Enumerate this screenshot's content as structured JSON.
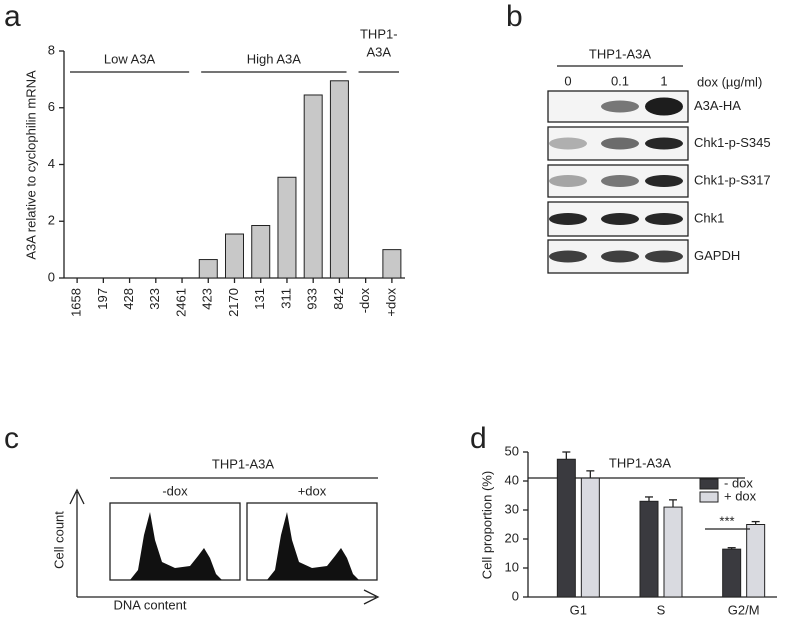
{
  "chart_data": [
    {
      "type": "bar",
      "panel": "a",
      "y_label": "A3A relative to cyclophilin mRNA",
      "categories": [
        "1658",
        "197",
        "428",
        "323",
        "2461",
        "423",
        "2170",
        "131",
        "311",
        "933",
        "842",
        "-dox",
        "+dox"
      ],
      "values": [
        0,
        0,
        0,
        0,
        0,
        0.65,
        1.55,
        1.85,
        3.55,
        6.45,
        6.95,
        0,
        1.0
      ],
      "color": "#c8c8c8",
      "ylim": [
        0,
        8
      ],
      "yticks": [
        0,
        2,
        4,
        6,
        8
      ],
      "groups": [
        "Low A3A",
        "High A3A",
        [
          "THP1-",
          "A3A"
        ]
      ]
    },
    {
      "type": "grouped_bar",
      "panel": "d",
      "title": "THP1-A3A",
      "y_label": "Cell proportion (%)",
      "categories": [
        "G1",
        "S",
        "G2/M"
      ],
      "series": [
        {
          "name": "- dox",
          "color": "#3a3a3f",
          "values": [
            47.5,
            33,
            16.5
          ],
          "errors": [
            2.5,
            1.5,
            0.5
          ]
        },
        {
          "name": "+ dox",
          "color": "#d9dae0",
          "values": [
            41,
            31,
            25
          ],
          "errors": [
            2.5,
            2.5,
            1
          ]
        }
      ],
      "ylim": [
        0,
        50
      ],
      "yticks": [
        0,
        10,
        20,
        30,
        40,
        50
      ],
      "annotation": "***",
      "legend": "upper right"
    }
  ],
  "panel_b": {
    "panel": "b",
    "title": "THP1-A3A",
    "lanes": [
      "0",
      "0.1",
      "1"
    ],
    "unit": "dox (µg/ml)",
    "bands": [
      "A3A-HA",
      "Chk1-p-S345",
      "Chk1-p-S317",
      "Chk1",
      "GAPDH"
    ]
  },
  "panel_c": {
    "panel": "c",
    "title": "THP1-A3A",
    "conditions": [
      "-dox",
      "+dox"
    ],
    "x_label": "DNA content",
    "y_label": "Cell count"
  }
}
